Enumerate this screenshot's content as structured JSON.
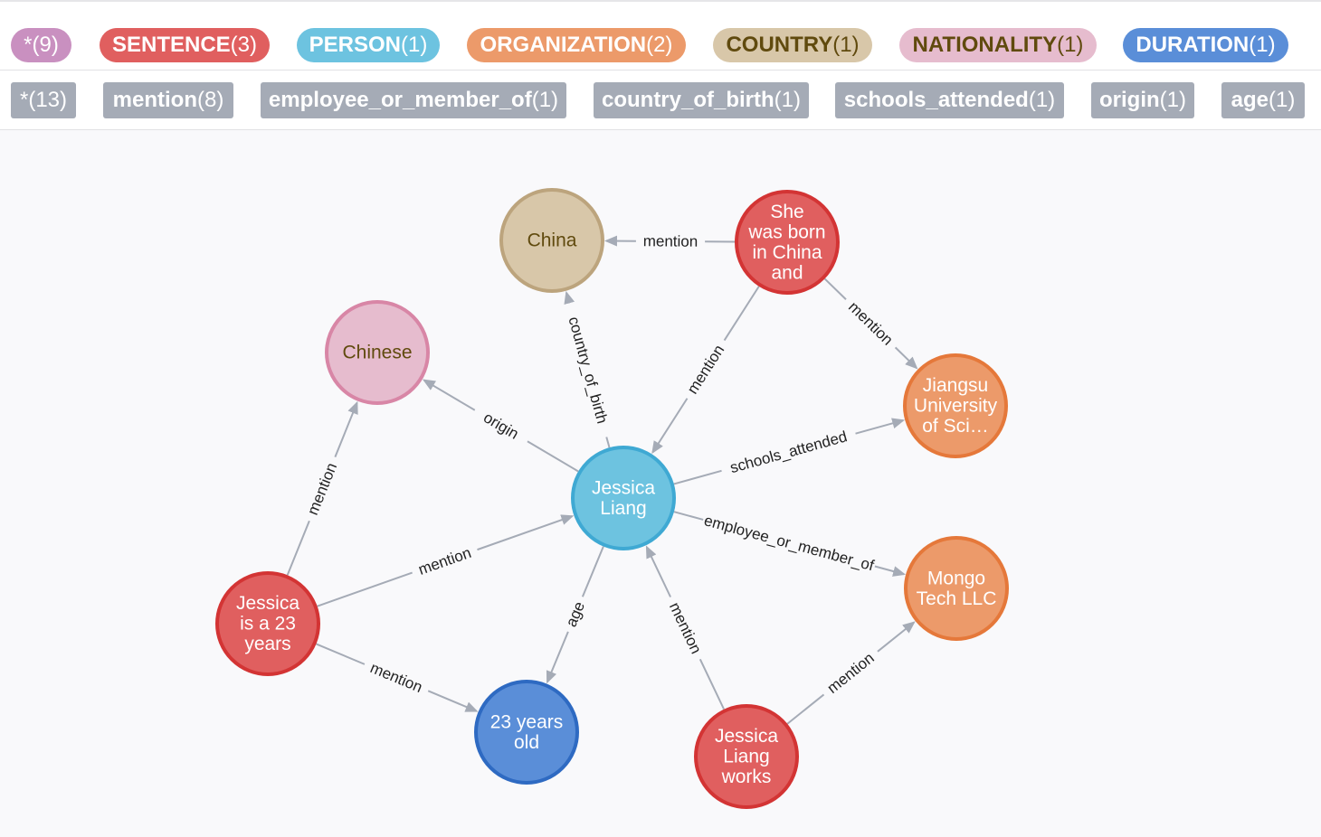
{
  "labels": [
    {
      "name": "*",
      "count": "(9)",
      "color": "#c990c0",
      "text_color": "#ffffff",
      "bold": false
    },
    {
      "name": "SENTENCE",
      "count": "(3)",
      "color": "#e05f5f",
      "text_color": "#ffffff",
      "bold": true
    },
    {
      "name": "PERSON",
      "count": "(1)",
      "color": "#6dc3e0",
      "text_color": "#ffffff",
      "bold": true
    },
    {
      "name": "ORGANIZATION",
      "count": "(2)",
      "color": "#ec9a6a",
      "text_color": "#ffffff",
      "bold": true
    },
    {
      "name": "COUNTRY",
      "count": "(1)",
      "color": "#d8c7a9",
      "text_color": "#604a0e",
      "bold": true
    },
    {
      "name": "NATIONALITY",
      "count": "(1)",
      "color": "#e6bcce",
      "text_color": "#604a0e",
      "bold": true
    },
    {
      "name": "DURATION",
      "count": "(1)",
      "color": "#5a8ed8",
      "text_color": "#ffffff",
      "bold": true
    }
  ],
  "relationships": [
    {
      "name": "*",
      "count": "(13)",
      "bold": false
    },
    {
      "name": "mention",
      "count": "(8)",
      "bold": true
    },
    {
      "name": "employee_or_member_of",
      "count": "(1)",
      "bold": true
    },
    {
      "name": "country_of_birth",
      "count": "(1)",
      "bold": true
    },
    {
      "name": "schools_attended",
      "count": "(1)",
      "bold": true
    },
    {
      "name": "origin",
      "count": "(1)",
      "bold": true
    },
    {
      "name": "age",
      "count": "(1)",
      "bold": true
    }
  ],
  "nodes": [
    {
      "id": "china",
      "type": "COUNTRY",
      "lines": [
        "China"
      ]
    },
    {
      "id": "she",
      "type": "SENTENCE",
      "lines": [
        "She",
        "was born",
        "in China",
        "and"
      ]
    },
    {
      "id": "chinese",
      "type": "NATIONALITY",
      "lines": [
        "Chinese"
      ]
    },
    {
      "id": "jiangsu",
      "type": "ORGANIZATION",
      "lines": [
        "Jiangsu",
        "University",
        "of Sci…"
      ]
    },
    {
      "id": "jessica",
      "type": "PERSON",
      "lines": [
        "Jessica",
        "Liang"
      ]
    },
    {
      "id": "mongo",
      "type": "ORGANIZATION",
      "lines": [
        "Mongo",
        "Tech LLC"
      ]
    },
    {
      "id": "age23",
      "type": "SENTENCE",
      "lines": [
        "Jessica",
        "is a 23",
        "years"
      ]
    },
    {
      "id": "years",
      "type": "DURATION",
      "lines": [
        "23 years",
        "old"
      ]
    },
    {
      "id": "works",
      "type": "SENTENCE",
      "lines": [
        "Jessica",
        "Liang",
        "works"
      ]
    }
  ],
  "edges": [
    {
      "from": "she",
      "to": "china",
      "label": "mention"
    },
    {
      "from": "she",
      "to": "jessica",
      "label": "mention"
    },
    {
      "from": "she",
      "to": "jiangsu",
      "label": "mention"
    },
    {
      "from": "jessica",
      "to": "china",
      "label": "country_of_birth"
    },
    {
      "from": "jessica",
      "to": "chinese",
      "label": "origin"
    },
    {
      "from": "jessica",
      "to": "jiangsu",
      "label": "schools_attended"
    },
    {
      "from": "jessica",
      "to": "mongo",
      "label": "employee_or_member_of"
    },
    {
      "from": "jessica",
      "to": "years",
      "label": "age"
    },
    {
      "from": "age23",
      "to": "chinese",
      "label": "mention"
    },
    {
      "from": "age23",
      "to": "jessica",
      "label": "mention"
    },
    {
      "from": "age23",
      "to": "years",
      "label": "mention"
    },
    {
      "from": "works",
      "to": "jessica",
      "label": "mention"
    },
    {
      "from": "works",
      "to": "mongo",
      "label": "mention"
    }
  ],
  "node_styles": {
    "SENTENCE": {
      "fill": "#e05f5f",
      "stroke": "#d33434",
      "text": "#ffffff"
    },
    "PERSON": {
      "fill": "#6dc3e0",
      "stroke": "#3fa9d3",
      "text": "#ffffff"
    },
    "ORGANIZATION": {
      "fill": "#ec9a6a",
      "stroke": "#e5783a",
      "text": "#ffffff"
    },
    "COUNTRY": {
      "fill": "#d8c7a9",
      "stroke": "#bca47d",
      "text": "#604a0e"
    },
    "NATIONALITY": {
      "fill": "#e6bcce",
      "stroke": "#d886a6",
      "text": "#604a0e"
    },
    "DURATION": {
      "fill": "#5a8ed8",
      "stroke": "#2e6ac2",
      "text": "#ffffff"
    }
  }
}
